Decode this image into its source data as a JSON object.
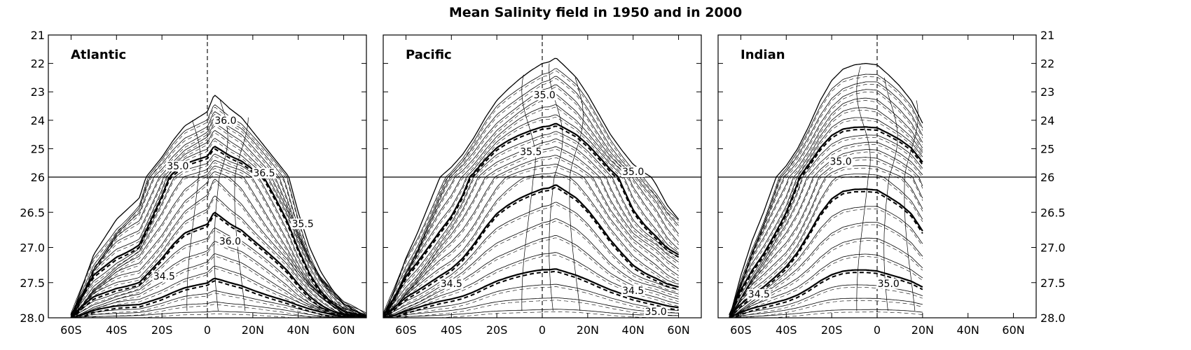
{
  "chart_data": {
    "type": "contour",
    "title": "Mean Salinity field in 1950 and in 2000",
    "x_ticks": [
      "60S",
      "40S",
      "20S",
      "0",
      "20N",
      "40N",
      "60N"
    ],
    "x_tick_values": [
      -60,
      -40,
      -20,
      0,
      20,
      40,
      60
    ],
    "xlim": [
      -70,
      70
    ],
    "y_ticks": [
      "21",
      "22",
      "23",
      "24",
      "25",
      "26",
      "26.5",
      "27.0",
      "27.5",
      "28.0"
    ],
    "y_tick_values": [
      21,
      22,
      23,
      24,
      25,
      26,
      26.5,
      27.0,
      27.5,
      28.0
    ],
    "ylim": [
      21,
      28.0
    ],
    "y_axis_break": 26,
    "y_inverted": true,
    "series": [
      {
        "name": "1950",
        "style": "solid"
      },
      {
        "name": "2000",
        "style": "dashed"
      }
    ],
    "panels": [
      {
        "name": "Atlantic",
        "label": "Atlantic",
        "outcrop_lat": [
          -60,
          -50,
          -40,
          -30,
          -25,
          -20,
          -15,
          -10,
          -5,
          0,
          3,
          6,
          10,
          15,
          20,
          25,
          30,
          35,
          40,
          45,
          50,
          55,
          60,
          65,
          70
        ],
        "outcrop_density": [
          28.0,
          27.1,
          26.6,
          26.3,
          25.8,
          25.3,
          24.7,
          24.2,
          23.95,
          23.7,
          23.1,
          23.3,
          23.6,
          23.9,
          24.4,
          24.9,
          25.4,
          25.9,
          26.5,
          27.0,
          27.35,
          27.6,
          27.8,
          27.9,
          28.0
        ],
        "contour_labels": [
          {
            "text": "35.0",
            "lat": -13,
            "density": 25.7
          },
          {
            "text": "36.0",
            "lat": 8,
            "density": 24.1
          },
          {
            "text": "36.5",
            "lat": 25,
            "density": 25.95
          },
          {
            "text": "35.5",
            "lat": 42,
            "density": 26.7
          },
          {
            "text": "36.0",
            "lat": 10,
            "density": 26.95
          },
          {
            "text": "34.5",
            "lat": -19,
            "density": 27.45
          }
        ]
      },
      {
        "name": "Pacific",
        "label": "Pacific",
        "outcrop_lat": [
          -70,
          -65,
          -60,
          -55,
          -50,
          -45,
          -40,
          -35,
          -30,
          -25,
          -20,
          -15,
          -10,
          -5,
          0,
          3,
          6,
          10,
          15,
          20,
          25,
          30,
          35,
          40,
          45,
          50,
          55,
          60
        ],
        "outcrop_density": [
          28.0,
          27.6,
          27.15,
          26.8,
          26.4,
          26.0,
          25.65,
          25.2,
          24.6,
          23.9,
          23.3,
          22.9,
          22.55,
          22.25,
          22.0,
          21.95,
          21.8,
          22.1,
          22.5,
          23.1,
          23.8,
          24.5,
          25.05,
          25.55,
          25.85,
          26.1,
          26.4,
          26.6
        ],
        "contour_labels": [
          {
            "text": "35.0",
            "lat": 1,
            "density": 23.2
          },
          {
            "text": "35.5",
            "lat": -5,
            "density": 25.2
          },
          {
            "text": "35.0",
            "lat": 40,
            "density": 25.9
          },
          {
            "text": "34.5",
            "lat": -40,
            "density": 27.55
          },
          {
            "text": "34.5",
            "lat": 40,
            "density": 27.65
          },
          {
            "text": "35.0",
            "lat": 50,
            "density": 27.95
          }
        ]
      },
      {
        "name": "Indian",
        "label": "Indian",
        "outcrop_lat": [
          -65,
          -60,
          -55,
          -50,
          -45,
          -40,
          -35,
          -30,
          -25,
          -20,
          -15,
          -10,
          -5,
          0,
          5,
          10,
          15,
          20
        ],
        "outcrop_density": [
          28.0,
          27.4,
          26.9,
          26.5,
          26.05,
          25.6,
          25.0,
          24.2,
          23.3,
          22.6,
          22.2,
          22.05,
          22.0,
          22.05,
          22.4,
          22.8,
          23.3,
          24.1
        ],
        "contour_labels": [
          {
            "text": "35.0",
            "lat": -16,
            "density": 25.55
          },
          {
            "text": "34.5",
            "lat": -52,
            "density": 27.7
          },
          {
            "text": "35.0",
            "lat": 5,
            "density": 27.55
          }
        ]
      }
    ]
  }
}
